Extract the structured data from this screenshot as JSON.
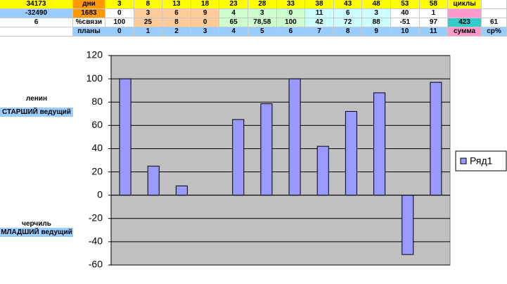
{
  "table": {
    "rows": [
      [
        "34173",
        "дни",
        "3",
        "8",
        "13",
        "18",
        "23",
        "28",
        "33",
        "38",
        "43",
        "48",
        "53",
        "58",
        "циклы",
        null
      ],
      [
        "-32490",
        "1683",
        "0",
        "3",
        "6",
        "9",
        "4",
        "3",
        "0",
        "11",
        "6",
        "3",
        "40",
        "1",
        null,
        null
      ],
      [
        "6",
        "%связи",
        "100",
        "25",
        "8",
        "0",
        "65",
        "78,58",
        "100",
        "42",
        "72",
        "88",
        "-51",
        "97",
        "423",
        "61"
      ],
      [
        null,
        "планы",
        "0",
        "1",
        "2",
        "3",
        "4",
        "5",
        "6",
        "7",
        "8",
        "9",
        "10",
        "11",
        "сумма",
        "ср%"
      ]
    ]
  },
  "side_labels": [
    "ленин",
    "СТАРШИЙ ведущий",
    "черчиль",
    "МЛАДШИЙ ведущий"
  ],
  "chart_data": {
    "type": "bar",
    "series": [
      {
        "name": "Ряд1",
        "color": "#9999ff",
        "values": [
          100,
          25,
          8,
          0,
          65,
          78.58,
          100,
          42,
          72,
          88,
          -51,
          97
        ]
      }
    ],
    "ylim": [
      -60,
      120
    ],
    "yticks": [
      -60,
      -40,
      -20,
      0,
      20,
      40,
      60,
      80,
      100,
      120
    ],
    "grid": true,
    "legend": "right"
  }
}
